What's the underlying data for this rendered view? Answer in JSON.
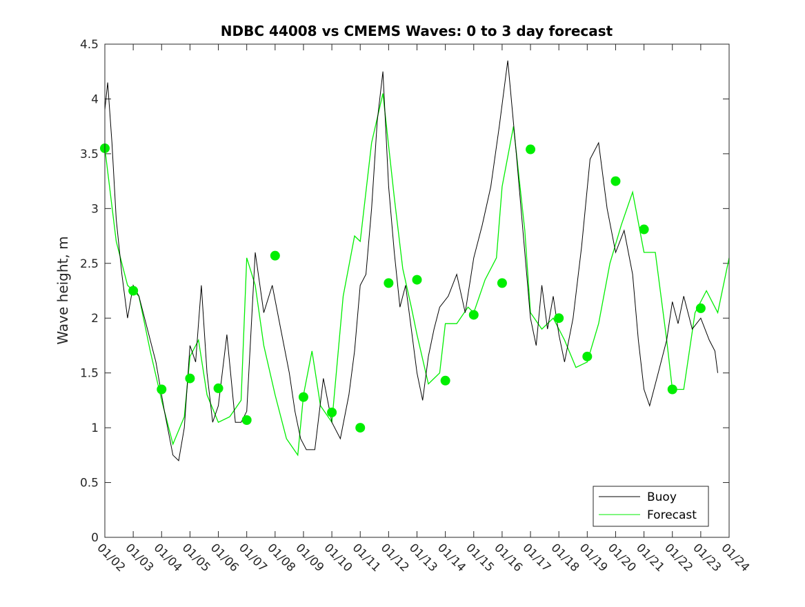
{
  "chart_data": {
    "type": "line",
    "title": "NDBC 44008 vs CMEMS Waves: 0 to 3 day forecast",
    "xlabel": "",
    "ylabel": "Wave height, m",
    "xlim": [
      0,
      22
    ],
    "ylim": [
      0,
      4.5
    ],
    "yticks": [
      "0",
      "0.5",
      "1",
      "1.5",
      "2",
      "2.5",
      "3",
      "3.5",
      "4",
      "4.5"
    ],
    "xtick_labels": [
      "01/02",
      "01/03",
      "01/04",
      "01/05",
      "01/06",
      "01/07",
      "01/08",
      "01/09",
      "01/10",
      "01/11",
      "01/12",
      "01/13",
      "01/14",
      "01/15",
      "01/16",
      "01/17",
      "01/18",
      "01/19",
      "01/20",
      "01/21",
      "01/22",
      "01/23",
      "01/24"
    ],
    "legend": {
      "location": "bottom-right",
      "entries": [
        "Buoy",
        "Forecast"
      ]
    },
    "colors": {
      "buoy": "#000000",
      "forecast": "#00ee00",
      "analysis_marker": "#00ee00"
    },
    "series": [
      {
        "name": "Buoy",
        "x": [
          0.0,
          0.1,
          0.25,
          0.4,
          0.6,
          0.8,
          1.0,
          1.2,
          1.5,
          1.8,
          2.1,
          2.4,
          2.6,
          2.8,
          3.0,
          3.2,
          3.4,
          3.6,
          3.8,
          4.0,
          4.3,
          4.6,
          4.8,
          5.0,
          5.3,
          5.6,
          5.9,
          6.2,
          6.5,
          6.7,
          6.9,
          7.1,
          7.4,
          7.7,
          8.0,
          8.3,
          8.6,
          8.8,
          9.0,
          9.2,
          9.4,
          9.6,
          9.8,
          10.0,
          10.2,
          10.4,
          10.6,
          10.8,
          11.0,
          11.2,
          11.4,
          11.6,
          11.8,
          12.1,
          12.4,
          12.7,
          13.0,
          13.3,
          13.6,
          13.9,
          14.2,
          14.5,
          14.8,
          15.0,
          15.2,
          15.4,
          15.6,
          15.8,
          16.0,
          16.2,
          16.5,
          16.8,
          17.1,
          17.4,
          17.7,
          18.0,
          18.3,
          18.6,
          18.8,
          19.0,
          19.2,
          19.5,
          19.8,
          20.0,
          20.2,
          20.4,
          20.7,
          21.0,
          21.3,
          21.5,
          21.6
        ],
        "values": [
          3.9,
          4.15,
          3.6,
          2.9,
          2.4,
          2.0,
          2.3,
          2.2,
          1.9,
          1.6,
          1.15,
          0.75,
          0.7,
          1.0,
          1.75,
          1.6,
          2.3,
          1.5,
          1.05,
          1.2,
          1.85,
          1.05,
          1.05,
          1.15,
          2.6,
          2.05,
          2.3,
          1.9,
          1.5,
          1.15,
          0.9,
          0.8,
          0.8,
          1.45,
          1.05,
          0.9,
          1.3,
          1.7,
          2.3,
          2.4,
          3.0,
          3.8,
          4.25,
          3.2,
          2.6,
          2.1,
          2.3,
          1.9,
          1.5,
          1.25,
          1.65,
          1.9,
          2.1,
          2.2,
          2.4,
          2.05,
          2.55,
          2.85,
          3.2,
          3.75,
          4.35,
          3.5,
          2.6,
          2.0,
          1.75,
          2.3,
          1.9,
          2.2,
          1.85,
          1.6,
          2.0,
          2.65,
          3.45,
          3.6,
          3.0,
          2.6,
          2.8,
          2.4,
          1.8,
          1.35,
          1.2,
          1.5,
          1.8,
          2.15,
          1.95,
          2.2,
          1.9,
          2.0,
          1.8,
          1.7,
          1.5
        ]
      },
      {
        "name": "Forecast",
        "x": [
          0.0,
          0.4,
          0.8,
          1.2,
          1.6,
          2.0,
          2.4,
          2.8,
          3.0,
          3.3,
          3.6,
          4.0,
          4.4,
          4.8,
          5.0,
          5.3,
          5.6,
          6.0,
          6.4,
          6.8,
          7.0,
          7.3,
          7.6,
          8.0,
          8.4,
          8.8,
          9.0,
          9.4,
          9.8,
          10.2,
          10.5,
          10.8,
          11.0,
          11.4,
          11.8,
          12.0,
          12.4,
          12.8,
          13.0,
          13.4,
          13.8,
          14.0,
          14.4,
          14.8,
          15.0,
          15.4,
          15.8,
          16.2,
          16.6,
          17.0,
          17.4,
          17.8,
          18.2,
          18.6,
          19.0,
          19.4,
          19.8,
          20.0,
          20.4,
          20.8,
          21.2,
          21.6,
          22.0
        ],
        "values": [
          3.55,
          2.7,
          2.3,
          2.2,
          1.7,
          1.25,
          0.85,
          1.1,
          1.65,
          1.8,
          1.3,
          1.05,
          1.1,
          1.25,
          2.55,
          2.3,
          1.75,
          1.3,
          0.9,
          0.75,
          1.3,
          1.7,
          1.2,
          1.05,
          2.2,
          2.75,
          2.7,
          3.6,
          4.05,
          3.1,
          2.45,
          2.1,
          1.85,
          1.4,
          1.5,
          1.95,
          1.95,
          2.1,
          2.05,
          2.35,
          2.55,
          3.2,
          3.75,
          2.8,
          2.05,
          1.9,
          2.0,
          1.8,
          1.55,
          1.6,
          1.95,
          2.5,
          2.85,
          3.15,
          2.6,
          2.6,
          1.8,
          1.35,
          1.35,
          2.05,
          2.25,
          2.05,
          2.55
        ]
      },
      {
        "name": "Analysis points",
        "x": [
          0,
          1,
          2,
          3,
          4,
          5,
          6,
          7,
          8,
          9,
          10,
          11,
          12,
          13,
          14,
          15,
          16,
          17,
          18,
          19,
          20,
          21
        ],
        "values": [
          3.55,
          2.25,
          1.35,
          1.45,
          1.36,
          1.07,
          2.57,
          1.28,
          1.14,
          1.0,
          2.32,
          2.35,
          1.43,
          2.03,
          2.32,
          3.54,
          2.0,
          1.65,
          3.25,
          2.81,
          1.35,
          2.09
        ]
      }
    ]
  }
}
